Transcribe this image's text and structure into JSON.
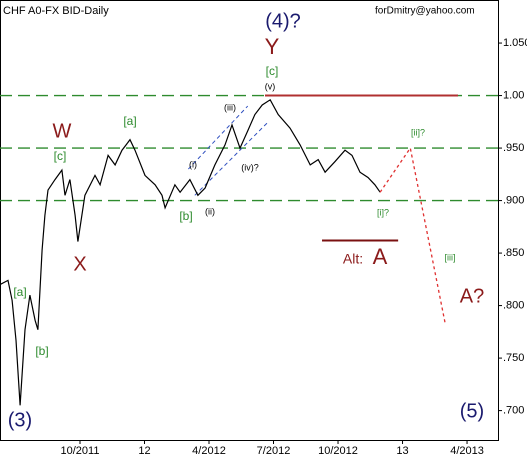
{
  "chart_data": {
    "type": "line",
    "title": "CHF A0-FX BID-Daily",
    "xlim": [
      2011.44,
      2013.37
    ],
    "ylim": [
      0.672,
      1.091
    ],
    "xticks": [
      {
        "value": 2011.75,
        "label": "10/2011"
      },
      {
        "value": 2012.0,
        "label": "12"
      },
      {
        "value": 2012.25,
        "label": "4/2012"
      },
      {
        "value": 2012.5,
        "label": "7/2012"
      },
      {
        "value": 2012.75,
        "label": "10/2012"
      },
      {
        "value": 2013.0,
        "label": "13"
      },
      {
        "value": 2013.25,
        "label": "4/2013"
      }
    ],
    "yticks": [
      {
        "value": 1.05,
        "label": "1.050"
      },
      {
        "value": 1.0,
        "label": "1.00"
      },
      {
        "value": 0.95,
        "label": ".950"
      },
      {
        "value": 0.9,
        "label": ".900"
      },
      {
        "value": 0.85,
        "label": ".850"
      },
      {
        "value": 0.8,
        "label": ".800"
      },
      {
        "value": 0.75,
        "label": ".750"
      },
      {
        "value": 0.7,
        "label": ".700"
      }
    ],
    "series": [
      {
        "color": "#000000",
        "style": "solid",
        "x": [
          2011.44,
          2011.471,
          2011.487,
          2011.502,
          2011.518,
          2011.537,
          2011.556,
          2011.576,
          2011.587,
          2011.603,
          2011.614,
          2011.626,
          2011.653,
          2011.68,
          2011.692,
          2011.711,
          2011.731,
          2011.742,
          2011.769,
          2011.808,
          2011.828,
          2011.859,
          2011.886,
          2011.913,
          2011.944,
          2011.963,
          2012.002,
          2012.041,
          2012.068,
          2012.08,
          2012.118,
          2012.138,
          2012.176,
          2012.207,
          2012.235,
          2012.273,
          2012.312,
          2012.339,
          2012.37,
          2012.401,
          2012.428,
          2012.456,
          2012.487,
          2012.518,
          2012.564,
          2012.603,
          2012.642,
          2012.673,
          2012.7,
          2012.738,
          2012.777,
          2012.804,
          2012.835,
          2012.866,
          2012.893,
          2012.913
        ],
        "values": [
          0.82,
          0.824,
          0.805,
          0.767,
          0.705,
          0.777,
          0.81,
          0.786,
          0.777,
          0.853,
          0.886,
          0.91,
          0.92,
          0.929,
          0.905,
          0.92,
          0.886,
          0.861,
          0.905,
          0.924,
          0.915,
          0.943,
          0.934,
          0.948,
          0.958,
          0.948,
          0.924,
          0.915,
          0.905,
          0.893,
          0.915,
          0.908,
          0.92,
          0.905,
          0.912,
          0.934,
          0.953,
          0.972,
          0.95,
          0.967,
          0.982,
          0.991,
          0.996,
          0.982,
          0.969,
          0.953,
          0.934,
          0.939,
          0.927,
          0.937,
          0.948,
          0.943,
          0.927,
          0.922,
          0.915,
          0.908
        ]
      },
      {
        "color": "#e03030",
        "style": "dotted",
        "x": [
          2012.913,
          2013.03,
          2013.166
        ],
        "values": [
          0.908,
          0.95,
          0.782
        ]
      }
    ],
    "levels": [
      1.0,
      0.95,
      0.9
    ],
    "level_color": "#2e8b2e",
    "hlines": [
      {
        "y": 1.0,
        "x": [
          2012.467,
          2013.215
        ],
        "color": "#b03030"
      },
      {
        "y": 0.862,
        "x": [
          2012.688,
          2012.983
        ],
        "color": "#7a1010"
      }
    ],
    "channel_color": "#3050c0",
    "channels": [
      {
        "x": [
          2012.195,
          2012.48
        ],
        "y": [
          0.905,
          0.975
        ]
      },
      {
        "x": [
          2012.17,
          2012.4
        ],
        "y": [
          0.93,
          0.99
        ]
      }
    ],
    "annotations": [
      {
        "text": "forDmitry@yahoo.com",
        "color": "#000000"
      },
      {
        "text": "(4)?",
        "color": "#1a1a6e"
      },
      {
        "text": "Y",
        "color": "#8b1a1a"
      },
      {
        "text": "[c]",
        "color": "#2e8b2e"
      },
      {
        "text": "(v)",
        "color": "#000000"
      },
      {
        "text": "W",
        "color": "#8b1a1a"
      },
      {
        "text": "[c]",
        "color": "#2e8b2e"
      },
      {
        "text": "[a]",
        "color": "#2e8b2e"
      },
      {
        "text": "(iii)",
        "color": "#000000"
      },
      {
        "text": "(i)",
        "color": "#000000"
      },
      {
        "text": "(iv)?",
        "color": "#000000"
      },
      {
        "text": "(ii)",
        "color": "#000000"
      },
      {
        "text": "[b]",
        "color": "#2e8b2e"
      },
      {
        "text": "X",
        "color": "#8b1a1a"
      },
      {
        "text": "[a]",
        "color": "#2e8b2e"
      },
      {
        "text": "[b]",
        "color": "#2e8b2e"
      },
      {
        "text": "(3)",
        "color": "#1a1a6e"
      },
      {
        "text": "[ii]?",
        "color": "#2e8b2e"
      },
      {
        "text": "[i]?",
        "color": "#2e8b2e"
      },
      {
        "text": "Alt:",
        "color": "#8b1a1a"
      },
      {
        "text": "A",
        "color": "#8b1a1a"
      },
      {
        "text": "[iii]",
        "color": "#2e8b2e"
      },
      {
        "text": "A?",
        "color": "#8b1a1a"
      },
      {
        "text": "(5)",
        "color": "#1a1a6e"
      }
    ]
  }
}
